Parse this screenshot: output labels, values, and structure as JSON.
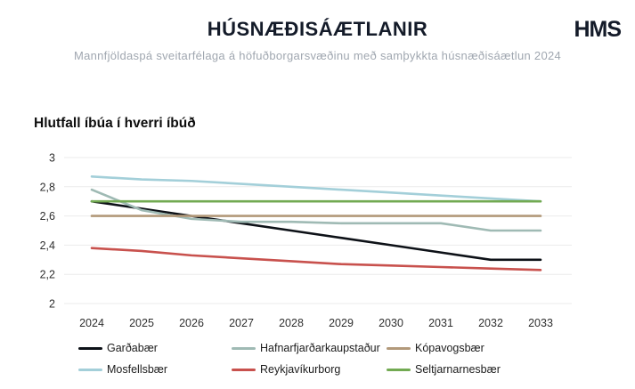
{
  "header": {
    "title": "HÚSNÆÐISÁÆTLANIR",
    "subtitle": "Mannfjöldaspá sveitarfélaga á höfuðborgarsvæðinu með samþykkta húsnæðisáætlun 2024",
    "logo": "HMS"
  },
  "chart_data": {
    "type": "line",
    "title": "Hlutfall íbúa í hverri íbúð",
    "xlabel": "",
    "ylabel": "",
    "x": [
      2024,
      2025,
      2026,
      2027,
      2028,
      2029,
      2030,
      2031,
      2032,
      2033
    ],
    "ylim": [
      2,
      3
    ],
    "yticks": [
      "3",
      "2,8",
      "2,6",
      "2,4",
      "2,2",
      "2"
    ],
    "ytick_values": [
      3,
      2.8,
      2.6,
      2.4,
      2.2,
      2
    ],
    "grid": true,
    "legend_position": "bottom",
    "series": [
      {
        "name": "Garðabær",
        "color": "#0d1117",
        "values": [
          2.7,
          2.65,
          2.6,
          2.55,
          2.5,
          2.45,
          2.4,
          2.35,
          2.3,
          2.3
        ]
      },
      {
        "name": "Hafnarfjarðarkaupstaður",
        "color": "#9fbab4",
        "values": [
          2.78,
          2.64,
          2.58,
          2.56,
          2.56,
          2.55,
          2.55,
          2.55,
          2.5,
          2.5
        ]
      },
      {
        "name": "Kópavogsbær",
        "color": "#b2997a",
        "values": [
          2.6,
          2.6,
          2.6,
          2.6,
          2.6,
          2.6,
          2.6,
          2.6,
          2.6,
          2.6
        ]
      },
      {
        "name": "Mosfellsbær",
        "color": "#a3cfd9",
        "values": [
          2.87,
          2.85,
          2.84,
          2.82,
          2.8,
          2.78,
          2.76,
          2.74,
          2.72,
          2.7
        ]
      },
      {
        "name": "Reykjavíkurborg",
        "color": "#c8514d",
        "values": [
          2.38,
          2.36,
          2.33,
          2.31,
          2.29,
          2.27,
          2.26,
          2.25,
          2.24,
          2.23
        ]
      },
      {
        "name": "Seltjarnarnesbær",
        "color": "#72aa52",
        "values": [
          2.7,
          2.7,
          2.7,
          2.7,
          2.7,
          2.7,
          2.7,
          2.7,
          2.7,
          2.7
        ]
      }
    ]
  }
}
